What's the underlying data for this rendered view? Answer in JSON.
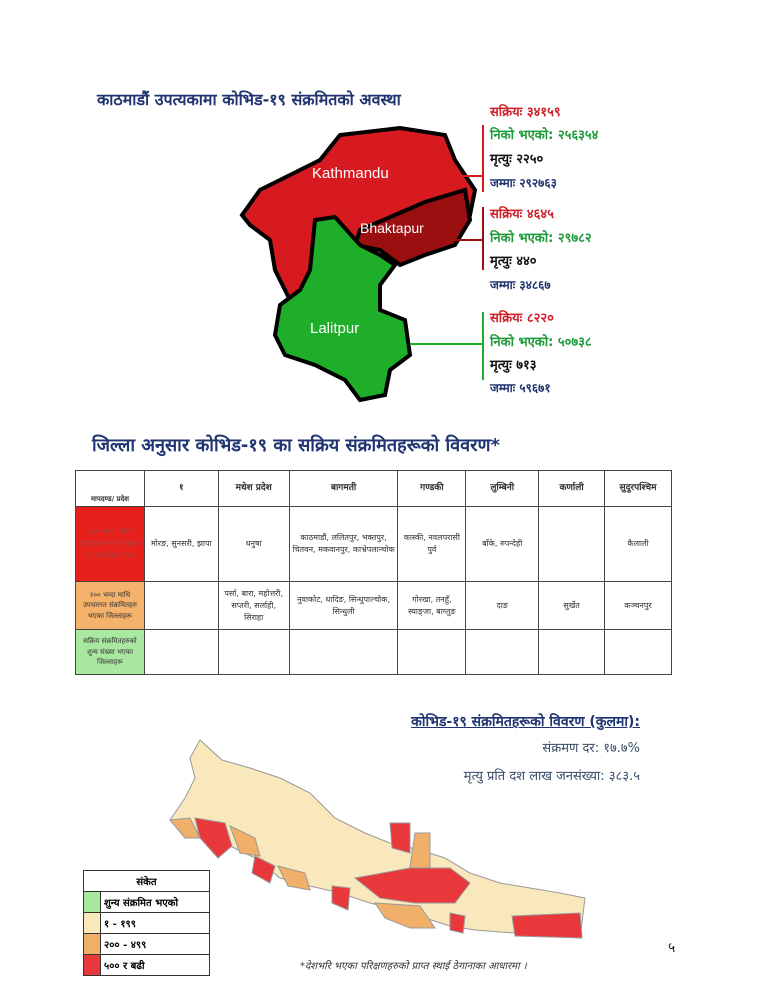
{
  "valley": {
    "title": "काठमाडौं उपत्यकामा कोभिड-१९ संक्रमितको अवस्था",
    "districts": [
      {
        "name": "Kathmandu",
        "active_label": "सक्रियः",
        "active": "३४१५९",
        "recovered_label": "निको भएको:",
        "recovered": "२५६३५४",
        "deaths_label": "मृत्युः",
        "deaths": "२२५०",
        "total_label": "जम्माः",
        "total": "२९२७६३",
        "color": "#d71920"
      },
      {
        "name": "Bhaktapur",
        "active_label": "सक्रियः",
        "active": "४६४५",
        "recovered_label": "निको भएको:",
        "recovered": "२९७८२",
        "deaths_label": "मृत्युः",
        "deaths": "४४०",
        "total_label": "जम्माः",
        "total": "३४८६७",
        "color": "#9b0f10"
      },
      {
        "name": "Lalitpur",
        "active_label": "सक्रियः",
        "active": "८२२०",
        "recovered_label": "निको भएको:",
        "recovered": "५०७३८",
        "deaths_label": "मृत्युः",
        "deaths": "७१३",
        "total_label": "जम्माः",
        "total": "५९६७१",
        "color": "#1fae2a"
      }
    ]
  },
  "district_table": {
    "title": "जिल्ला अनुसार कोभिड-१९ का सक्रिय संक्रमितहरूको विवरण*",
    "corner": "मापदण्ड/ प्रदेश",
    "columns": [
      "१",
      "मधेश प्रदेश",
      "बागमती",
      "गण्डकी",
      "लुम्बिनी",
      "कर्णाली",
      "सुदुरपश्चिम"
    ],
    "rows": [
      {
        "label": "५०० भन्दा माथि उपचाररत संक्रमितहरु भएका जिल्लाहरू",
        "color": "#e8201c",
        "cells": [
          "मोरङ, सुनसरी, झापा",
          "धनुषा",
          "काठमाडौं, ललितपुर, भक्तपुर, चितवन, मकवानपुर, काभ्रेपलान्चोक",
          "कास्की, नवलपरासी पुर्व",
          "बाँके, रुपन्देही",
          "",
          "कैलाली"
        ]
      },
      {
        "label": "२०० भन्दा माथि उपचाररत संक्रमितहरु भएका जिल्लाहरू",
        "color": "#f4b26c",
        "cells": [
          "",
          "पर्सा, बारा, महोत्तरी, सप्तरी, सर्लाही, सिराहा",
          "नुवाकोट, धादिङ, सिन्धुपाल्चोक, सिन्धुली",
          "गोरखा, तनहुँ, स्याङ्जा, बाग्लुङ",
          "दाङ",
          "सुर्खेत",
          "कञ्चनपुर"
        ]
      },
      {
        "label": "सक्रिय संक्रमितहरुको शुन्य संख्या भएका जिल्लाहरू",
        "color": "#a8e8a0",
        "cells": [
          "",
          "",
          "",
          "",
          "",
          "",
          ""
        ]
      }
    ]
  },
  "summary": {
    "title": "कोभिड-१९ संक्रमितहरूको  विवरण (कुलमा):",
    "infection_rate": "संक्रमण दर: १७.७%",
    "deaths_per_million": "मृत्यु प्रति दश लाख जनसंख्या: ३८३.५"
  },
  "legend": {
    "title": "संकेत",
    "items": [
      {
        "label": "शुन्य संक्रमित भएको",
        "color": "#a8e8a0"
      },
      {
        "label": "१ - १९९",
        "color": "#f8e8bc"
      },
      {
        "label": "२०० - ४९९",
        "color": "#f0b06a"
      },
      {
        "label": "५०० र बढी",
        "color": "#e8383c"
      }
    ]
  },
  "footnote": "*देशभरि भएका परिक्षणहरुको प्राप्त स्थाई ठेगानाका आधारमा ।",
  "page_number": "५"
}
